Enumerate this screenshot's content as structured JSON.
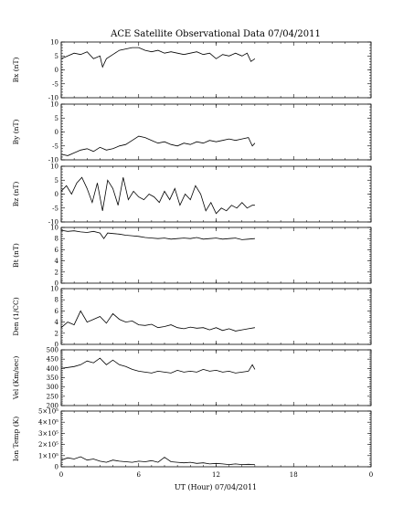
{
  "title": "ACE Satellite Observational Data   07/04/2011",
  "xlabel": "UT (Hour)   07/04/2011",
  "chart_data": [
    {
      "type": "line",
      "ylabel": "Bx (nT)",
      "ylim": [
        -10,
        10
      ],
      "yticks": [
        10,
        5,
        0,
        -5,
        -10
      ],
      "ytick_labels": [
        "10",
        "5",
        "0",
        "-5",
        "-10"
      ],
      "xlim": [
        0,
        24
      ],
      "xticks": [
        0,
        6,
        12,
        18,
        24
      ],
      "series": [
        {
          "x": [
            0,
            0.5,
            1,
            1.5,
            2,
            2.5,
            3,
            3.2,
            3.5,
            4,
            4.5,
            5,
            5.5,
            6,
            6.5,
            7,
            7.5,
            8,
            8.5,
            9,
            9.5,
            10,
            10.5,
            11,
            11.5,
            12,
            12.5,
            13,
            13.5,
            14,
            14.4,
            14.7,
            15
          ],
          "values": [
            4,
            5,
            6,
            5.5,
            6.5,
            4,
            5,
            1,
            4,
            5.5,
            7,
            7.5,
            8,
            8,
            7,
            6.5,
            7,
            6,
            6.5,
            6,
            5.5,
            6,
            6.5,
            5.5,
            6,
            4,
            5.5,
            5,
            6,
            5,
            6,
            3,
            4
          ]
        }
      ]
    },
    {
      "type": "line",
      "ylabel": "By (nT)",
      "ylim": [
        -10,
        10
      ],
      "yticks": [
        10,
        5,
        0,
        -5,
        -10
      ],
      "ytick_labels": [
        "10",
        "5",
        "0",
        "-5",
        "-10"
      ],
      "xlim": [
        0,
        24
      ],
      "xticks": [
        0,
        6,
        12,
        18,
        24
      ],
      "series": [
        {
          "x": [
            0,
            0.5,
            1,
            1.5,
            2,
            2.5,
            3,
            3.5,
            4,
            4.5,
            5,
            5.5,
            6,
            6.5,
            7,
            7.5,
            8,
            8.5,
            9,
            9.5,
            10,
            10.5,
            11,
            11.5,
            12,
            12.5,
            13,
            13.5,
            14,
            14.5,
            14.8,
            15
          ],
          "values": [
            -8,
            -8.5,
            -7.5,
            -6.5,
            -6,
            -7,
            -5.5,
            -6.5,
            -6,
            -5,
            -4.5,
            -3,
            -1.5,
            -2,
            -3,
            -4,
            -3.5,
            -4.5,
            -5,
            -4,
            -4.5,
            -3.5,
            -4,
            -3,
            -3.5,
            -3,
            -2.5,
            -3,
            -2.5,
            -2,
            -5,
            -4
          ]
        }
      ]
    },
    {
      "type": "line",
      "ylabel": "Bz (nT)",
      "ylim": [
        -10,
        10
      ],
      "yticks": [
        10,
        5,
        0,
        -5,
        -10
      ],
      "ytick_labels": [
        "10",
        "5",
        "0",
        "-5",
        "-10"
      ],
      "xlim": [
        0,
        24
      ],
      "xticks": [
        0,
        6,
        12,
        18,
        24
      ],
      "series": [
        {
          "x": [
            0,
            0.4,
            0.8,
            1.2,
            1.6,
            2,
            2.4,
            2.8,
            3.2,
            3.6,
            4,
            4.4,
            4.8,
            5.2,
            5.6,
            6,
            6.4,
            6.8,
            7.2,
            7.6,
            8,
            8.4,
            8.8,
            9.2,
            9.6,
            10,
            10.4,
            10.8,
            11.2,
            11.6,
            12,
            12.4,
            12.8,
            13.2,
            13.6,
            14,
            14.4,
            14.8,
            15
          ],
          "values": [
            1,
            3,
            0,
            4,
            6,
            2,
            -3,
            4,
            -6,
            5,
            2,
            -4,
            6,
            -2,
            1,
            -1,
            -2,
            0,
            -1,
            -3,
            1,
            -2,
            2,
            -4,
            0,
            -2,
            3,
            0,
            -6,
            -3,
            -7,
            -5,
            -6,
            -4,
            -5,
            -3,
            -5,
            -4,
            -4
          ]
        }
      ]
    },
    {
      "type": "line",
      "ylabel": "Bt (nT)",
      "ylim": [
        0,
        10
      ],
      "yticks": [
        10,
        8,
        6,
        4,
        2,
        0
      ],
      "ytick_labels": [
        "10",
        "8",
        "6",
        "4",
        "2",
        "0"
      ],
      "xlim": [
        0,
        24
      ],
      "xticks": [
        0,
        6,
        12,
        18,
        24
      ],
      "series": [
        {
          "x": [
            0,
            0.5,
            1,
            1.5,
            2,
            2.5,
            3,
            3.3,
            3.6,
            4,
            4.5,
            5,
            5.5,
            6,
            6.5,
            7,
            7.5,
            8,
            8.5,
            9,
            9.5,
            10,
            10.5,
            11,
            11.5,
            12,
            12.5,
            13,
            13.5,
            14,
            14.5,
            15
          ],
          "values": [
            9.5,
            9.3,
            9.4,
            9.2,
            9.1,
            9.3,
            9,
            8,
            9,
            8.9,
            8.8,
            8.6,
            8.5,
            8.4,
            8.2,
            8.1,
            8,
            8.1,
            7.9,
            8,
            8.1,
            8,
            8.2,
            7.9,
            8,
            8.1,
            7.9,
            8,
            8.1,
            7.8,
            7.9,
            8
          ]
        }
      ]
    },
    {
      "type": "line",
      "ylabel": "Den (1/CC)",
      "ylim": [
        0,
        10
      ],
      "yticks": [
        10,
        8,
        6,
        4,
        2,
        0
      ],
      "ytick_labels": [
        "10",
        "8",
        "6",
        "4",
        "2",
        "0"
      ],
      "xlim": [
        0,
        24
      ],
      "xticks": [
        0,
        6,
        12,
        18,
        24
      ],
      "series": [
        {
          "x": [
            0,
            0.5,
            1,
            1.5,
            2,
            2.5,
            3,
            3.5,
            4,
            4.5,
            5,
            5.5,
            6,
            6.5,
            7,
            7.5,
            8,
            8.5,
            9,
            9.5,
            10,
            10.5,
            11,
            11.5,
            12,
            12.5,
            13,
            13.5,
            14,
            14.5,
            15
          ],
          "values": [
            3,
            4,
            3.5,
            6,
            4,
            4.5,
            5,
            3.8,
            5.5,
            4.5,
            4,
            4.2,
            3.5,
            3.4,
            3.6,
            3,
            3.2,
            3.5,
            3,
            2.8,
            3.1,
            2.9,
            3,
            2.6,
            3,
            2.5,
            2.8,
            2.4,
            2.6,
            2.8,
            3
          ]
        }
      ]
    },
    {
      "type": "line",
      "ylabel": "Vel (Km/sec)",
      "ylim": [
        200,
        500
      ],
      "yticks": [
        500,
        450,
        400,
        350,
        300,
        250,
        200
      ],
      "ytick_labels": [
        "500",
        "450",
        "400",
        "350",
        "300",
        "250",
        "200"
      ],
      "xlim": [
        0,
        24
      ],
      "xticks": [
        0,
        6,
        12,
        18,
        24
      ],
      "series": [
        {
          "x": [
            0,
            0.5,
            1,
            1.5,
            2,
            2.5,
            3,
            3.5,
            4,
            4.5,
            5,
            5.5,
            6,
            6.5,
            7,
            7.5,
            8,
            8.5,
            9,
            9.5,
            10,
            10.5,
            11,
            11.5,
            12,
            12.5,
            13,
            13.5,
            14,
            14.5,
            14.8,
            15
          ],
          "values": [
            400,
            405,
            410,
            420,
            440,
            430,
            455,
            420,
            445,
            420,
            410,
            395,
            385,
            380,
            375,
            385,
            380,
            375,
            390,
            380,
            385,
            380,
            395,
            385,
            390,
            380,
            385,
            375,
            380,
            385,
            420,
            395
          ]
        }
      ]
    },
    {
      "type": "line",
      "ylabel": "Ion Temp (K)",
      "ylim": [
        0,
        500000
      ],
      "yticks": [
        500000,
        400000,
        300000,
        200000,
        100000,
        0
      ],
      "ytick_labels": [
        "5×10⁵",
        "4×10⁵",
        "3×10⁵",
        "2×10⁵",
        "1×10⁵",
        "0"
      ],
      "xlim": [
        0,
        24
      ],
      "xticks": [
        0,
        6,
        12,
        18,
        24
      ],
      "series": [
        {
          "x": [
            0,
            0.5,
            1,
            1.5,
            2,
            2.5,
            3,
            3.5,
            4,
            4.5,
            5,
            5.5,
            6,
            6.5,
            7,
            7.5,
            8,
            8.5,
            9,
            9.5,
            10,
            10.5,
            11,
            11.5,
            12,
            12.5,
            13,
            13.5,
            14,
            14.5,
            15
          ],
          "values": [
            60000,
            80000,
            70000,
            90000,
            60000,
            70000,
            50000,
            40000,
            60000,
            50000,
            45000,
            40000,
            50000,
            45000,
            55000,
            40000,
            85000,
            45000,
            40000,
            35000,
            40000,
            30000,
            35000,
            25000,
            30000,
            25000,
            20000,
            25000,
            20000,
            22000,
            20000
          ]
        }
      ]
    }
  ],
  "xtick_labels": [
    "0",
    "6",
    "12",
    "18",
    "0"
  ]
}
